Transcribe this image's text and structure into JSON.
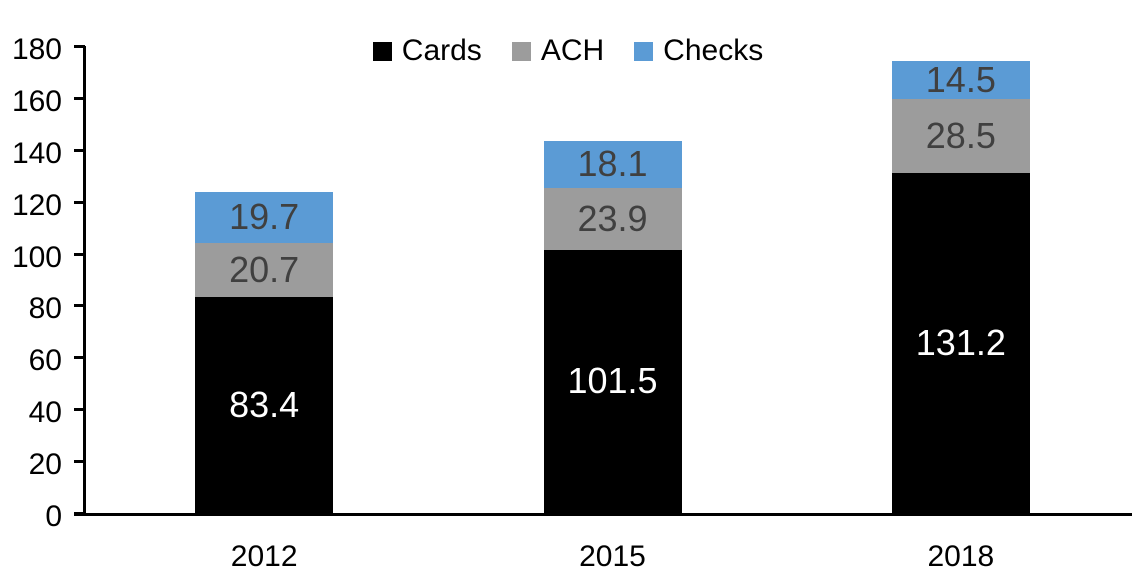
{
  "chart_data": {
    "type": "bar",
    "stacked": true,
    "title": "",
    "categories": [
      "2012",
      "2015",
      "2018"
    ],
    "series": [
      {
        "name": "Cards",
        "color": "#000000",
        "label_color": "#ffffff",
        "values": [
          83.4,
          101.5,
          131.2
        ]
      },
      {
        "name": "ACH",
        "color": "#9c9c9c",
        "label_color": "#404040",
        "values": [
          20.7,
          23.9,
          28.5
        ]
      },
      {
        "name": "Checks",
        "color": "#5b9bd5",
        "label_color": "#404040",
        "values": [
          19.7,
          18.1,
          14.5
        ]
      }
    ],
    "stack_order_bottom_to_top": [
      "Cards",
      "ACH",
      "Checks"
    ],
    "data_labels": true,
    "label_decimals": 1,
    "xlabel": "",
    "ylabel": "",
    "ylim": [
      0,
      180
    ],
    "yticks": [
      0,
      20,
      40,
      60,
      80,
      100,
      120,
      140,
      160,
      180
    ],
    "grid": false,
    "legend_position": "top",
    "axis_color": "#000000"
  }
}
